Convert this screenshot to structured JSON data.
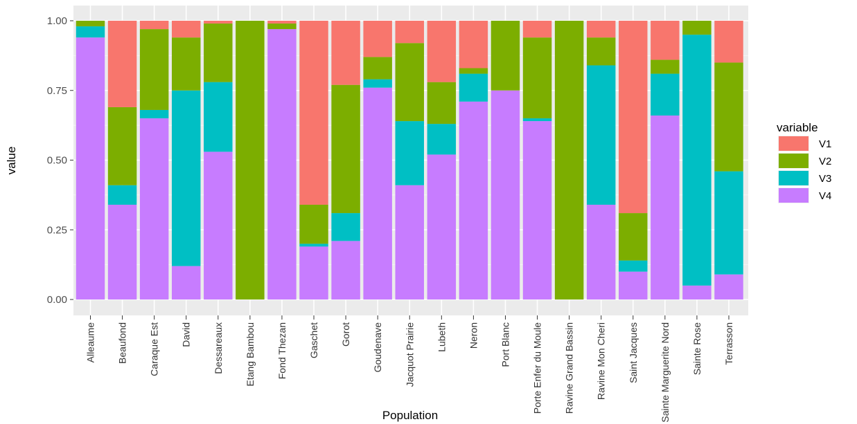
{
  "chart_data": {
    "type": "bar",
    "stacked": true,
    "xlabel": "Population",
    "ylabel": "value",
    "ylim": [
      0,
      1
    ],
    "yticks": [
      "0.00",
      "0.25",
      "0.50",
      "0.75",
      "1.00"
    ],
    "grid": true,
    "legend": {
      "title": "variable",
      "position": "right"
    },
    "categories": [
      "Alleaume",
      "Beaufond",
      "Caraque Est",
      "David",
      "Dessareaux",
      "Etang Bambou",
      "Fond Thezan",
      "Gaschet",
      "Gorot",
      "Goudenave",
      "Jacquot Prairie",
      "Lubeth",
      "Neron",
      "Port Blanc",
      "Porte Enfer du Moule",
      "Ravine Grand Bassin",
      "Ravine Mon Cheri",
      "Saint Jacques",
      "Sainte Marguerite Nord",
      "Sainte Rose",
      "Terrasson"
    ],
    "series": [
      {
        "name": "V4",
        "color": "#C77CFF",
        "values": [
          0.94,
          0.34,
          0.65,
          0.12,
          0.53,
          0.0,
          0.97,
          0.19,
          0.21,
          0.76,
          0.41,
          0.52,
          0.71,
          0.75,
          0.64,
          0.0,
          0.34,
          0.1,
          0.66,
          0.05,
          0.09
        ]
      },
      {
        "name": "V3",
        "color": "#00BFC4",
        "values": [
          0.04,
          0.07,
          0.03,
          0.63,
          0.25,
          0.0,
          0.0,
          0.01,
          0.1,
          0.03,
          0.23,
          0.11,
          0.1,
          0.0,
          0.01,
          0.0,
          0.5,
          0.04,
          0.15,
          0.9,
          0.37
        ]
      },
      {
        "name": "V2",
        "color": "#7CAE00",
        "values": [
          0.02,
          0.28,
          0.29,
          0.19,
          0.21,
          1.0,
          0.02,
          0.14,
          0.46,
          0.08,
          0.28,
          0.15,
          0.02,
          0.25,
          0.29,
          1.0,
          0.1,
          0.17,
          0.05,
          0.05,
          0.39
        ]
      },
      {
        "name": "V1",
        "color": "#F8766D",
        "values": [
          0.0,
          0.31,
          0.03,
          0.06,
          0.01,
          0.0,
          0.01,
          0.66,
          0.23,
          0.13,
          0.08,
          0.22,
          0.17,
          0.0,
          0.06,
          0.0,
          0.06,
          0.69,
          0.14,
          0.0,
          0.15
        ]
      }
    ],
    "legend_order": [
      "V1",
      "V2",
      "V3",
      "V4"
    ]
  }
}
